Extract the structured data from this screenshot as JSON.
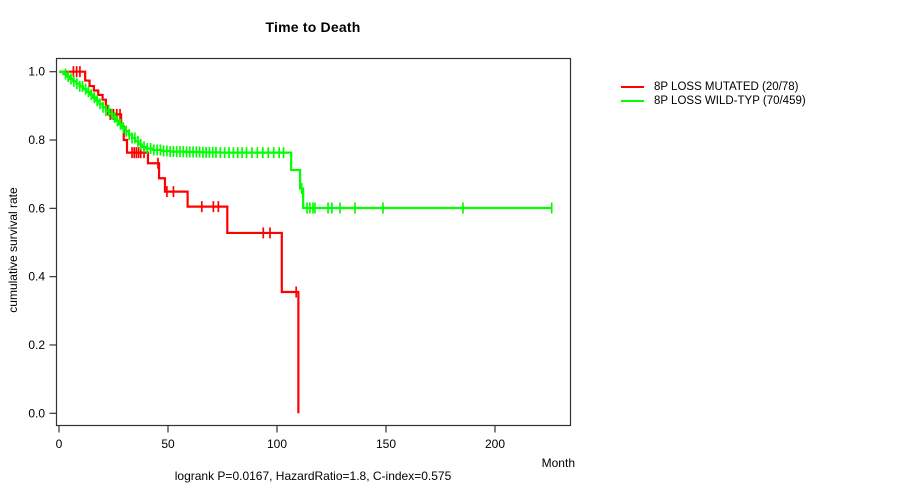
{
  "chart_data": {
    "type": "line",
    "subtype": "kaplan-meier-step",
    "title": "Time to Death",
    "xlabel": "Month",
    "ylabel": "cumulative survival rate",
    "annotation": "logrank P=0.0167, HazardRatio=1.8, C-index=0.575",
    "xlim": [
      0,
      234
    ],
    "ylim": [
      0.0,
      1.0
    ],
    "x_ticks": [
      0,
      50,
      100,
      150,
      200
    ],
    "y_ticks": [
      1.0,
      0.8,
      0.6,
      0.4,
      0.2,
      0.0
    ],
    "grid": false,
    "legend_position": "right-outside",
    "series": [
      {
        "name": "8P LOSS MUTATED (20/78)",
        "color": "#ff0000",
        "events_total": "20/78",
        "steps": [
          [
            0,
            1.0
          ],
          [
            12,
            0.974
          ],
          [
            14,
            0.958
          ],
          [
            16,
            0.945
          ],
          [
            18,
            0.932
          ],
          [
            20,
            0.918
          ],
          [
            21.5,
            0.9
          ],
          [
            22.5,
            0.875
          ],
          [
            28.5,
            0.84
          ],
          [
            29.7,
            0.8
          ],
          [
            31.2,
            0.763
          ],
          [
            40.8,
            0.732
          ],
          [
            45.9,
            0.688
          ],
          [
            48.6,
            0.649
          ],
          [
            59,
            0.605
          ],
          [
            77.2,
            0.528
          ],
          [
            102.2,
            0.355
          ],
          [
            109.8,
            0.0
          ]
        ],
        "censor_months": [
          6.6,
          8.1,
          9.6,
          23.5,
          25,
          26.5,
          28,
          33.5,
          34.5,
          35.5,
          36.5,
          37.5,
          39,
          45.4,
          49.5,
          52.5,
          65.5,
          70.8,
          73.1,
          93.7,
          96.8,
          108.8
        ]
      },
      {
        "name": "8P LOSS WILD-TYP (70/459)",
        "color": "#00ff00",
        "events_total": "70/459",
        "steps": [
          [
            0,
            1.0
          ],
          [
            2,
            0.993
          ],
          [
            3.5,
            0.986
          ],
          [
            5,
            0.979
          ],
          [
            6.5,
            0.972
          ],
          [
            8,
            0.965
          ],
          [
            9.5,
            0.957
          ],
          [
            11,
            0.949
          ],
          [
            12.5,
            0.941
          ],
          [
            14,
            0.933
          ],
          [
            15.5,
            0.924
          ],
          [
            17,
            0.915
          ],
          [
            18.5,
            0.906
          ],
          [
            20,
            0.896
          ],
          [
            21.5,
            0.886
          ],
          [
            23,
            0.876
          ],
          [
            24.5,
            0.866
          ],
          [
            26,
            0.856
          ],
          [
            27.5,
            0.846
          ],
          [
            29,
            0.836
          ],
          [
            30.5,
            0.826
          ],
          [
            32,
            0.816
          ],
          [
            33.5,
            0.806
          ],
          [
            35,
            0.796
          ],
          [
            36.5,
            0.787
          ],
          [
            38,
            0.78
          ],
          [
            40,
            0.775
          ],
          [
            43,
            0.771
          ],
          [
            47,
            0.768
          ],
          [
            51,
            0.766
          ],
          [
            58,
            0.765
          ],
          [
            65,
            0.764
          ],
          [
            74,
            0.763
          ],
          [
            106.5,
            0.712
          ],
          [
            110.6,
            0.658
          ],
          [
            112,
            0.601
          ],
          [
            226,
            0.601
          ]
        ],
        "censor_months": [
          3,
          4.2,
          5.5,
          6.8,
          8.2,
          9.5,
          10.8,
          12.2,
          13.5,
          14.8,
          16.2,
          17.5,
          18.8,
          20.2,
          21.5,
          22.8,
          24.2,
          25.5,
          26.8,
          28.2,
          29.5,
          30.8,
          32.2,
          33.5,
          34.8,
          36.2,
          37.5,
          39,
          40.5,
          42,
          43.5,
          45,
          46.5,
          48,
          49.5,
          51,
          52.5,
          54,
          55.5,
          57,
          58.5,
          60,
          61.5,
          63,
          64.5,
          66,
          67.5,
          69,
          70.5,
          72,
          74,
          76,
          78,
          80,
          82,
          84,
          86,
          88.5,
          91,
          93.5,
          96,
          98.5,
          101,
          103,
          111.3,
          113.8,
          115.1,
          116.5,
          117.4,
          123.4,
          125.2,
          128.9,
          135.8,
          148.6,
          185.3,
          226
        ]
      }
    ]
  }
}
